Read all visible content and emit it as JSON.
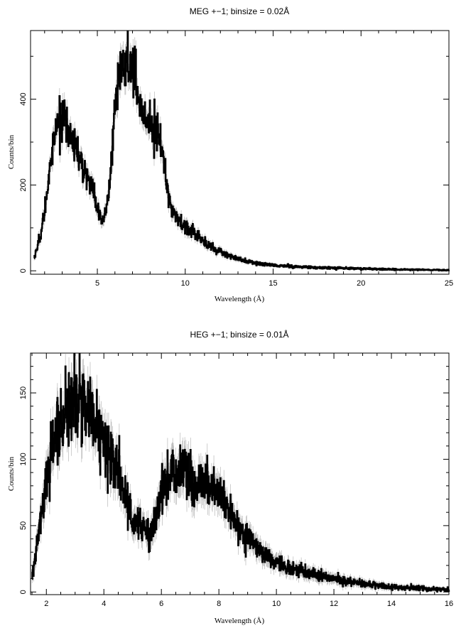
{
  "chart_data": [
    {
      "type": "line",
      "title": "MEG +−1; binsize = 0.02Å",
      "xlabel": "Wavelength (Å)",
      "ylabel": "Counts/bin",
      "xlim": [
        1.2,
        25
      ],
      "ylim": [
        -8,
        560
      ],
      "x_ticks": [
        5,
        10,
        15,
        20,
        25
      ],
      "x_tick_labels": [
        "5",
        "10",
        "15",
        "20",
        "25"
      ],
      "y_ticks": [
        0,
        200,
        400
      ],
      "y_tick_labels": [
        "0",
        "200",
        "400"
      ],
      "x_minor_step": 1,
      "y_minor_step": 100,
      "grid": false,
      "series": [
        {
          "x": [
            1.4,
            1.6,
            1.8,
            2.0,
            2.2,
            2.4,
            2.6,
            2.8,
            3.0,
            3.2,
            3.4,
            3.6,
            3.8,
            4.0,
            4.2,
            4.4,
            4.6,
            4.8,
            5.0,
            5.2,
            5.4,
            5.6,
            5.8,
            6.0,
            6.2,
            6.4,
            6.6,
            6.8,
            7.0,
            7.2,
            7.4,
            7.6,
            7.8,
            8.0,
            8.2,
            8.4,
            8.6,
            8.8,
            9.0,
            9.2,
            9.4,
            9.6,
            9.8,
            10,
            10.5,
            11,
            11.5,
            12,
            12.5,
            13,
            13.5,
            14,
            15,
            16,
            17,
            18,
            19,
            20,
            21,
            22,
            23,
            24,
            25
          ],
          "y": [
            30,
            60,
            90,
            140,
            210,
            280,
            320,
            345,
            355,
            340,
            320,
            300,
            280,
            260,
            235,
            215,
            200,
            185,
            150,
            120,
            125,
            170,
            250,
            390,
            440,
            470,
            480,
            490,
            470,
            450,
            400,
            360,
            350,
            345,
            340,
            330,
            300,
            245,
            175,
            140,
            130,
            120,
            110,
            105,
            85,
            70,
            55,
            45,
            35,
            28,
            22,
            18,
            13,
            10,
            8,
            7,
            6,
            5,
            4,
            3,
            3,
            2,
            2
          ],
          "noise": 0.11,
          "points_per_unit": 50,
          "error_scale": 1.0
        }
      ]
    },
    {
      "type": "line",
      "title": "HEG +−1; binsize = 0.01Å",
      "xlabel": "Wavelength (Å)",
      "ylabel": "Counts/bin",
      "xlim": [
        1.45,
        16
      ],
      "ylim": [
        -2,
        180
      ],
      "x_ticks": [
        2,
        4,
        6,
        8,
        10,
        12,
        14,
        16
      ],
      "x_tick_labels": [
        "2",
        "4",
        "6",
        "8",
        "10",
        "12",
        "14",
        "16"
      ],
      "y_ticks": [
        0,
        50,
        100,
        150
      ],
      "y_tick_labels": [
        "0",
        "50",
        "100",
        "150"
      ],
      "x_minor_step": 0.5,
      "y_minor_step": 10,
      "grid": false,
      "series": [
        {
          "x": [
            1.5,
            1.6,
            1.8,
            2.0,
            2.2,
            2.4,
            2.6,
            2.8,
            3.0,
            3.2,
            3.4,
            3.6,
            3.8,
            4.0,
            4.2,
            4.4,
            4.6,
            4.8,
            5.0,
            5.2,
            5.4,
            5.6,
            5.8,
            6.0,
            6.2,
            6.4,
            6.6,
            6.8,
            7.0,
            7.2,
            7.4,
            7.6,
            7.8,
            8.0,
            8.2,
            8.4,
            8.6,
            8.8,
            9.0,
            9.2,
            9.4,
            9.6,
            9.8,
            10.0,
            10.5,
            11.0,
            11.5,
            12.0,
            12.5,
            13.0,
            13.5,
            14.0,
            14.5,
            15.0,
            15.5,
            16.0
          ],
          "y": [
            10,
            25,
            55,
            85,
            110,
            125,
            135,
            140,
            143,
            142,
            138,
            132,
            125,
            115,
            105,
            95,
            82,
            65,
            52,
            55,
            48,
            40,
            55,
            75,
            85,
            88,
            90,
            92,
            85,
            78,
            80,
            83,
            78,
            73,
            67,
            60,
            52,
            45,
            40,
            36,
            32,
            28,
            25,
            22,
            18,
            15,
            12,
            10,
            8,
            6,
            5,
            4,
            3,
            3,
            2,
            2
          ],
          "noise": 0.16,
          "points_per_unit": 100,
          "error_scale": 1.0
        }
      ]
    }
  ]
}
